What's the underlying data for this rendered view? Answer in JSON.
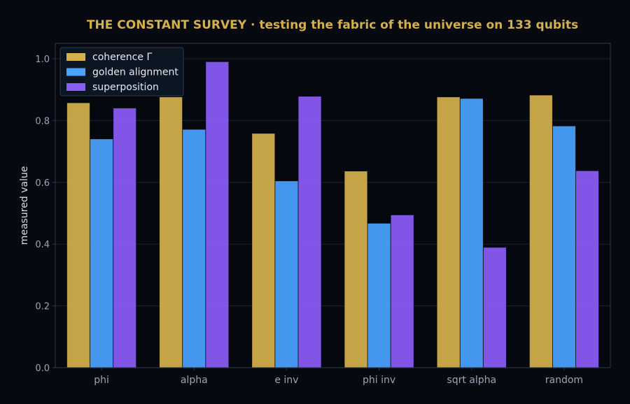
{
  "chart_data": {
    "type": "bar",
    "title": "THE CONSTANT SURVEY  ·  testing the fabric of the universe on 133 qubits",
    "xlabel": "",
    "ylabel": "measured value",
    "ylim": [
      0,
      1.05
    ],
    "yticks": [
      "0.0",
      "0.2",
      "0.4",
      "0.6",
      "0.8",
      "1.0"
    ],
    "ytick_values": [
      0,
      0.2,
      0.4,
      0.6,
      0.8,
      1.0
    ],
    "grid": true,
    "legend_position": "top-left",
    "categories": [
      "phi",
      "alpha",
      "e inv",
      "phi inv",
      "sqrt alpha",
      "random"
    ],
    "series": [
      {
        "name": "coherence Γ",
        "color": "#d4b04c",
        "values": [
          0.857,
          0.876,
          0.758,
          0.636,
          0.876,
          0.882
        ]
      },
      {
        "name": "golden alignment",
        "color": "#4aa3ff",
        "values": [
          0.74,
          0.771,
          0.604,
          0.467,
          0.871,
          0.782
        ]
      },
      {
        "name": "superposition",
        "color": "#8b5cf6",
        "values": [
          0.84,
          0.99,
          0.878,
          0.494,
          0.389,
          0.637
        ]
      }
    ],
    "colors": {
      "background": "#06090f",
      "plot_background": "#05080e",
      "axes_border": "#2c3a4e",
      "title": "#d4b04c",
      "tick_label": "#9aa5b8",
      "axis_label": "#d6dde8",
      "grid": "#1a2333",
      "legend_background": "#0d1624",
      "legend_text": "#e6ebf2"
    }
  }
}
